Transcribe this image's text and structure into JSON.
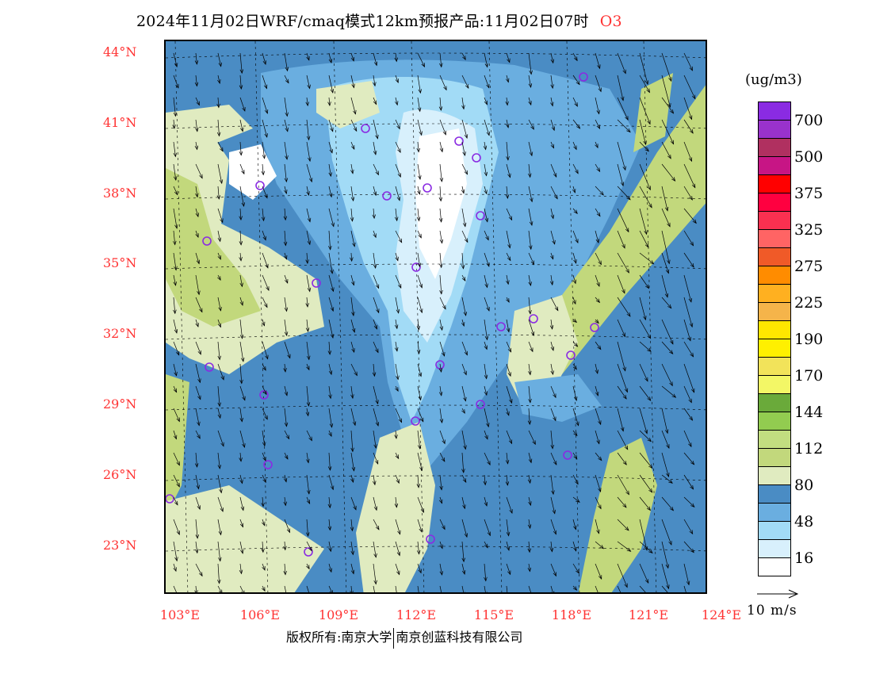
{
  "title": {
    "main": "2024年11月02日WRF/cmaq模式12km预报产品:11月02日07时",
    "species": "O3"
  },
  "map": {
    "lat_labels": [
      "44°N",
      "41°N",
      "38°N",
      "35°N",
      "32°N",
      "29°N",
      "26°N",
      "23°N"
    ],
    "lon_labels": [
      "103°E",
      "106°E",
      "109°E",
      "112°E",
      "115°E",
      "118°E",
      "121°E",
      "124°E"
    ]
  },
  "legend": {
    "unit": "(ug/m3)",
    "colors": [
      "#8a2be2",
      "#9932cc",
      "#b03060",
      "#c71585",
      "#ff0000",
      "#ff0040",
      "#fa3050",
      "#ff6464",
      "#f05a28",
      "#ff8c00",
      "#ffb020",
      "#f5b44a",
      "#ffe600",
      "#fff000",
      "#f2e35a",
      "#f3f766",
      "#6aaa3a",
      "#92cc50",
      "#c2de80",
      "#c2d87c",
      "#e0ebc0",
      "#4a8cc4",
      "#6aaee0",
      "#a2dbf6",
      "#d8f0fc",
      "#ffffff"
    ],
    "labels": [
      "700",
      "500",
      "375",
      "325",
      "275",
      "225",
      "190",
      "170",
      "144",
      "112",
      "80",
      "48",
      "16"
    ],
    "vector_label": "10 m/s"
  },
  "footer": {
    "left": "版权所有:南京大学",
    "right": "南京创蓝科技有限公司"
  }
}
